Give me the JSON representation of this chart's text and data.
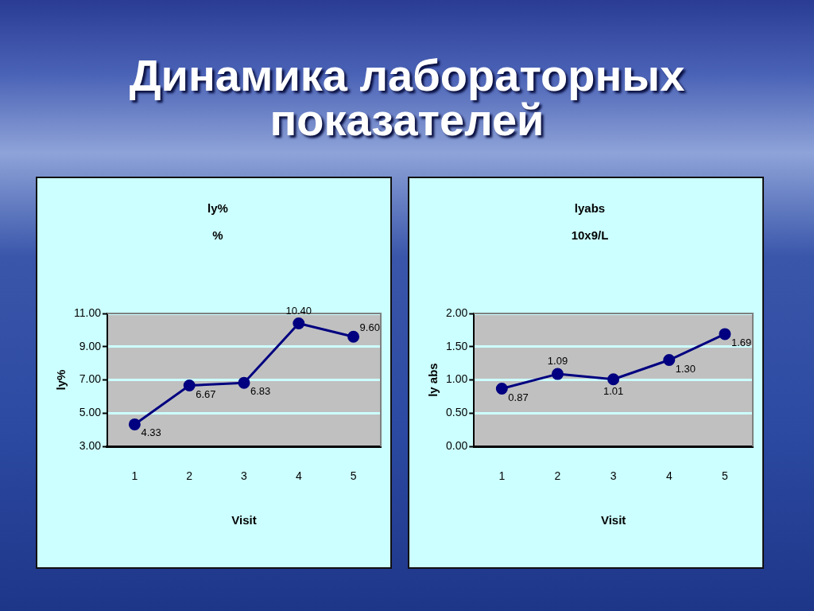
{
  "chart_data": [
    {
      "type": "line",
      "title": "ly%",
      "subtitle": "%",
      "xlabel": "Visit",
      "ylabel": "ly%",
      "annotations": [
        "Динамика лабораторных показателей"
      ],
      "categories": [
        "1",
        "2",
        "3",
        "4",
        "5"
      ],
      "series": [
        {
          "color": "#000080",
          "values": [
            4.33,
            6.67,
            6.83,
            10.4,
            9.6
          ],
          "value_labels": [
            "4.33",
            "6.67",
            "6.83",
            "10.40",
            "9.60"
          ]
        }
      ],
      "ylim": [
        3,
        11
      ],
      "yticks": [
        {
          "value": 3,
          "label": "3.00"
        },
        {
          "value": 5,
          "label": "5.00"
        },
        {
          "value": 7,
          "label": "7.00"
        },
        {
          "value": 9,
          "label": "9.00"
        },
        {
          "value": 11,
          "label": "11.00"
        }
      ],
      "grid": "y",
      "marker": "circle"
    },
    {
      "type": "line",
      "title": "lyabs",
      "subtitle": "10x9/L",
      "xlabel": "Visit",
      "ylabel": "ly abs",
      "categories": [
        "1",
        "2",
        "3",
        "4",
        "5"
      ],
      "series": [
        {
          "color": "#000080",
          "values": [
            0.87,
            1.09,
            1.01,
            1.3,
            1.69
          ],
          "value_labels": [
            "0.87",
            "1.09",
            "1.01",
            "1.30",
            "1.69"
          ]
        }
      ],
      "ylim": [
        0,
        2
      ],
      "yticks": [
        {
          "value": 0,
          "label": "0.00"
        },
        {
          "value": 0.5,
          "label": "0.50"
        },
        {
          "value": 1,
          "label": "1.00"
        },
        {
          "value": 1.5,
          "label": "1.50"
        },
        {
          "value": 2,
          "label": "2.00"
        }
      ],
      "grid": "y",
      "marker": "circle"
    }
  ]
}
